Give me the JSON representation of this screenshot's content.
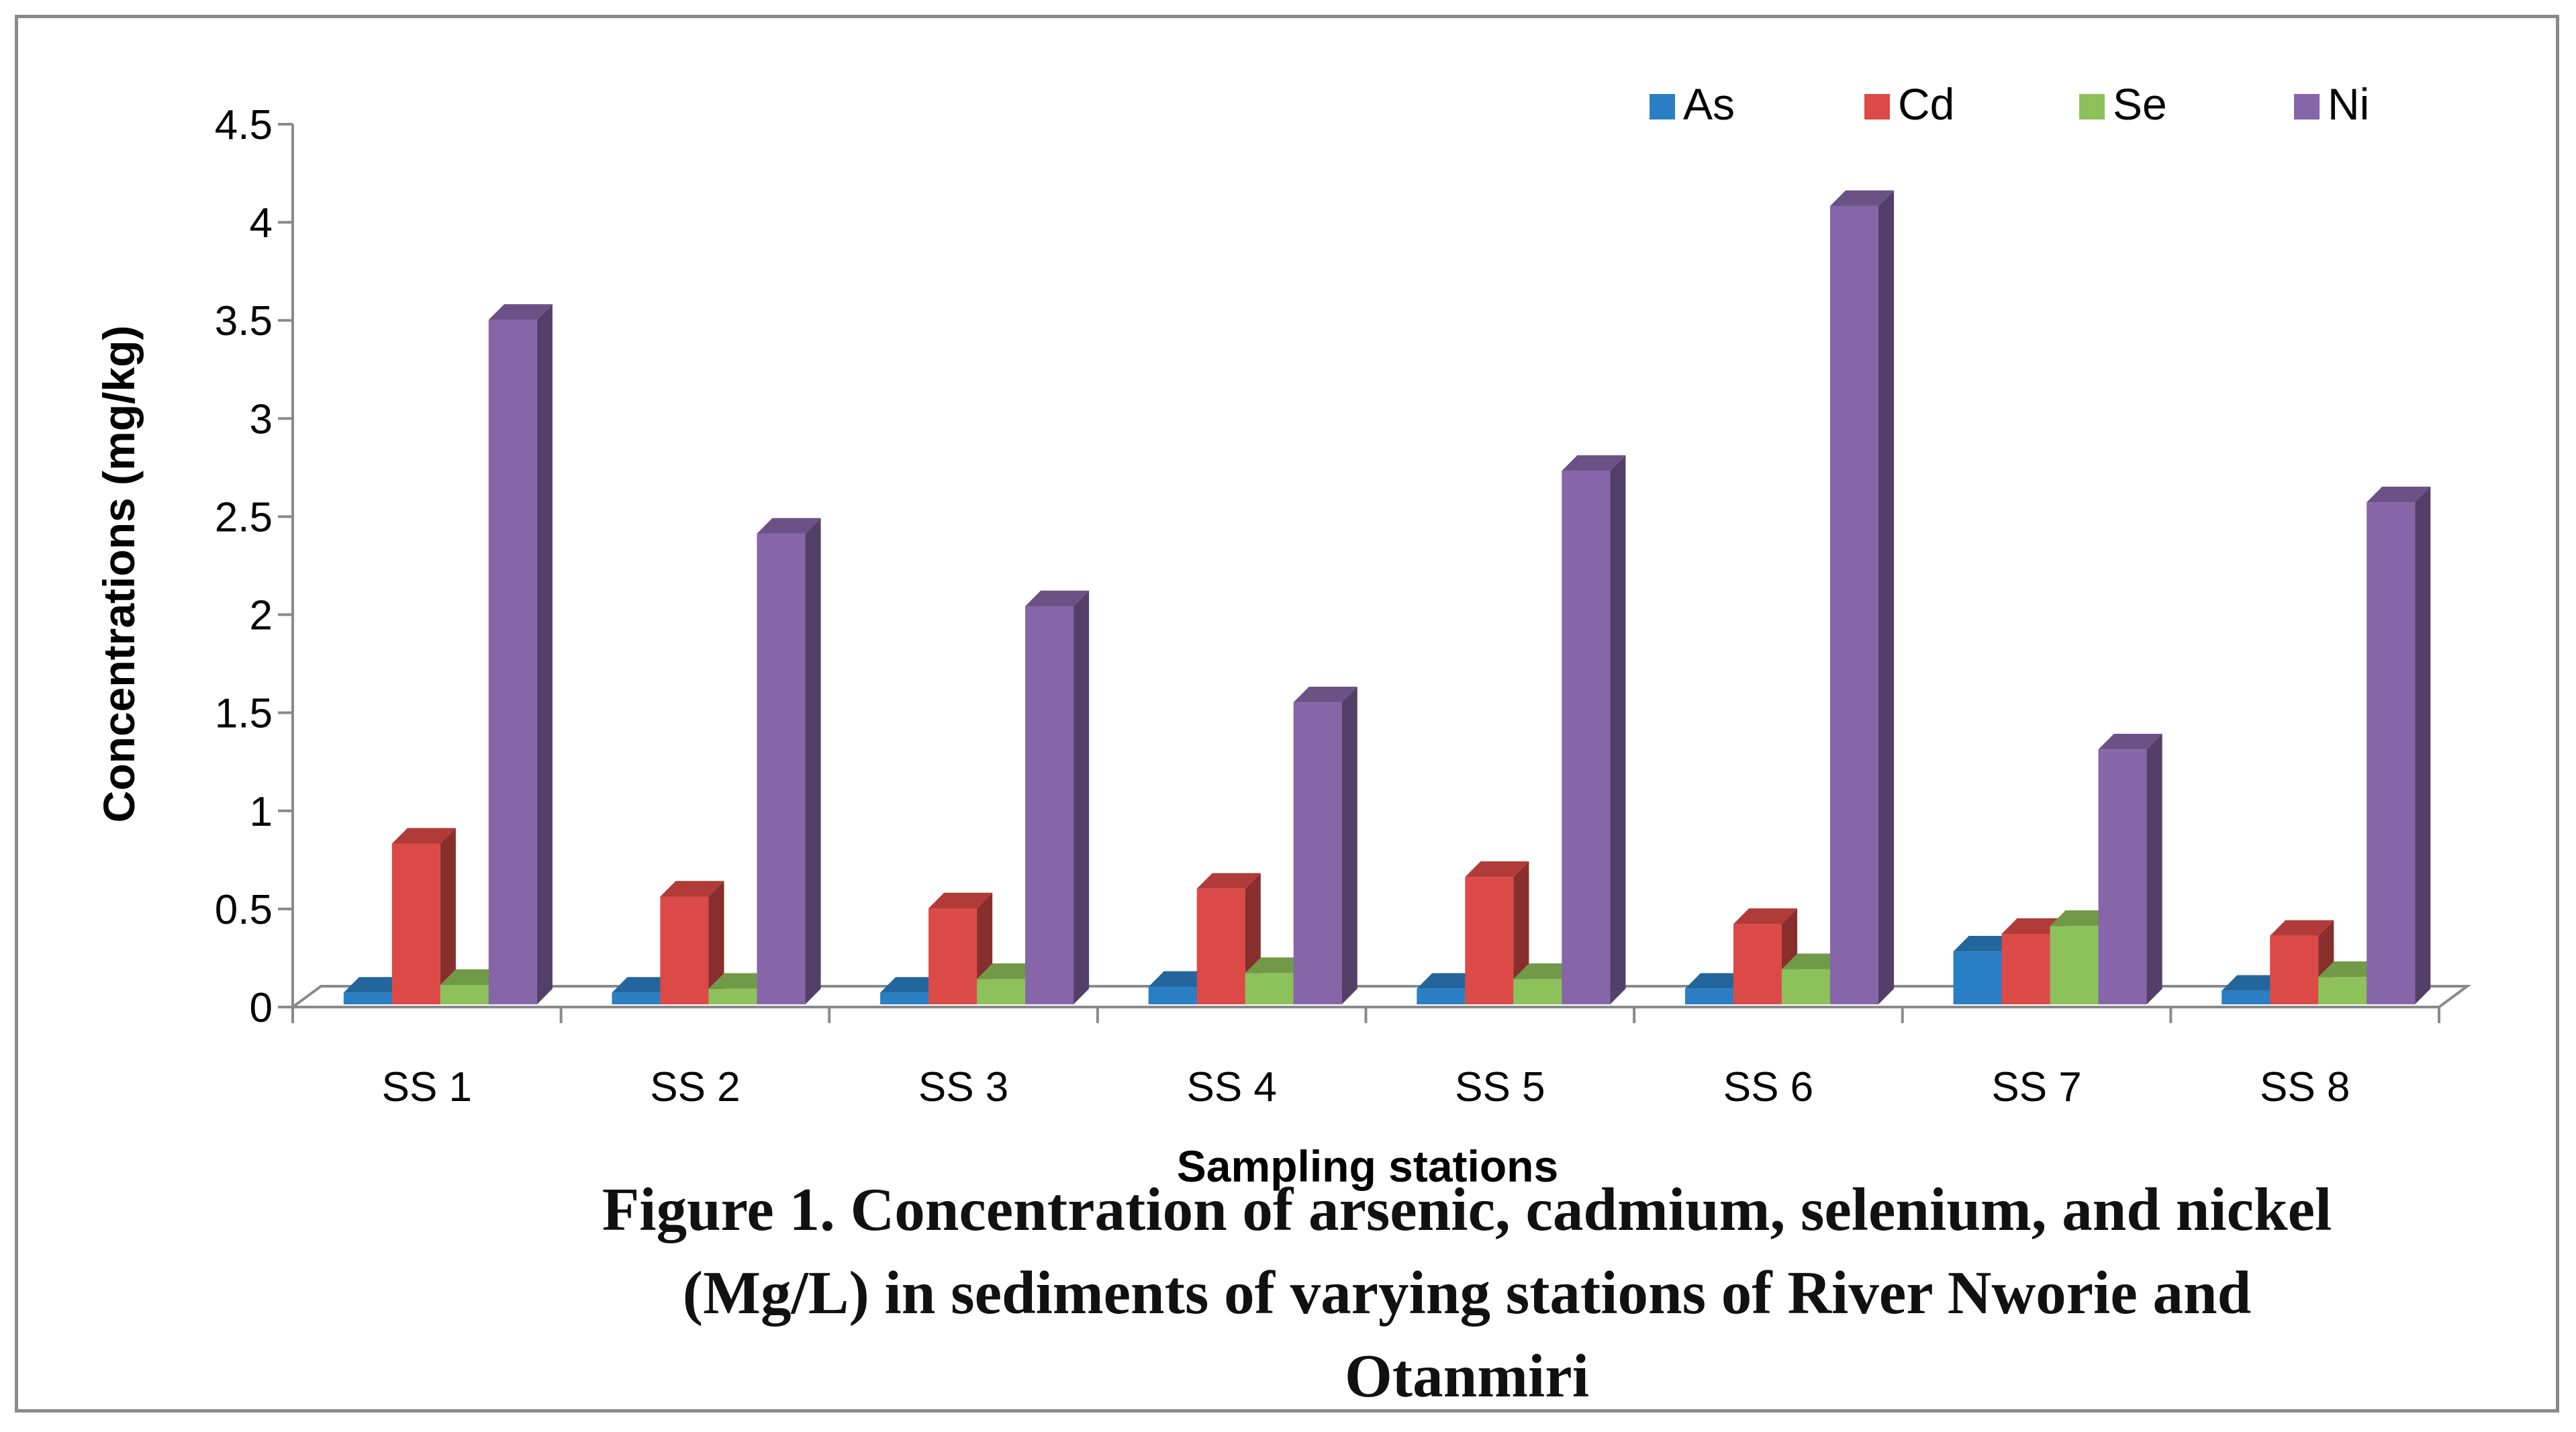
{
  "chart_data": {
    "type": "bar",
    "subtype": "3d-clustered-column",
    "categories": [
      "SS 1",
      "SS 2",
      "SS 3",
      "SS 4",
      "SS 5",
      "SS 6",
      "SS 7",
      "SS 8"
    ],
    "series": [
      {
        "name": "As",
        "color": "#2a7fc4",
        "values": [
          0.02,
          0.02,
          0.02,
          0.05,
          0.04,
          0.04,
          0.23,
          0.03
        ]
      },
      {
        "name": "Cd",
        "color": "#dc4a47",
        "values": [
          0.78,
          0.51,
          0.45,
          0.55,
          0.61,
          0.37,
          0.32,
          0.31
        ]
      },
      {
        "name": "Se",
        "color": "#8dc15a",
        "values": [
          0.06,
          0.04,
          0.09,
          0.12,
          0.09,
          0.14,
          0.36,
          0.1
        ]
      },
      {
        "name": "Ni",
        "color": "#8765a9",
        "values": [
          3.45,
          2.36,
          1.99,
          1.5,
          2.68,
          4.03,
          1.26,
          2.52
        ]
      }
    ],
    "yticks": [
      "0",
      "0.5",
      "1",
      "1.5",
      "2",
      "2.5",
      "3",
      "3.5",
      "4",
      "4.5"
    ],
    "ylim": [
      0,
      4.5
    ],
    "xlabel": "Sampling stations",
    "ylabel": "Concentrations (mg/kg)",
    "legend_position": "top-right",
    "grid": false
  },
  "caption": {
    "line1": "Figure 1. Concentration of arsenic, cadmium, selenium, and nickel",
    "line2": "(Mg/L) in sediments of varying stations of River Nworie and",
    "line3": "Otanmiri"
  }
}
